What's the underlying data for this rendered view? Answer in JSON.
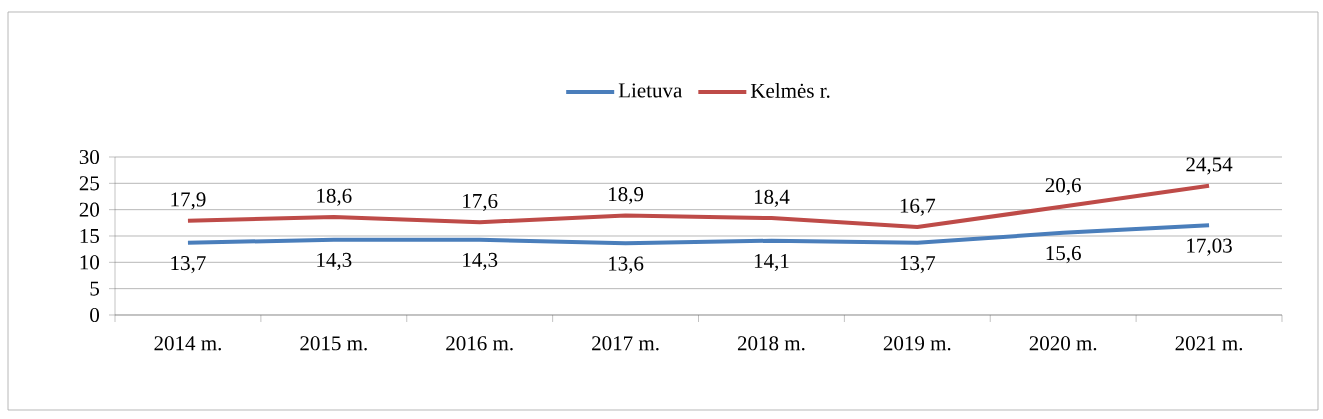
{
  "chart_data": {
    "type": "line",
    "categories": [
      "2014 m.",
      "2015 m.",
      "2016 m.",
      "2017 m.",
      "2018 m.",
      "2019 m.",
      "2020 m.",
      "2021 m."
    ],
    "series": [
      {
        "name": "Lietuva",
        "color": "#4a7ebb",
        "values": [
          13.7,
          14.3,
          14.3,
          13.6,
          14.1,
          13.7,
          15.6,
          17.03
        ],
        "value_labels": [
          "13,7",
          "14,3",
          "14,3",
          "13,6",
          "14,1",
          "13,7",
          "15,6",
          "17,03"
        ]
      },
      {
        "name": "Kelmės r.",
        "color": "#be4b48",
        "values": [
          17.9,
          18.6,
          17.6,
          18.9,
          18.4,
          16.7,
          20.6,
          24.54
        ],
        "value_labels": [
          "17,9",
          "18,6",
          "17,6",
          "18,9",
          "18,4",
          "16,7",
          "20,6",
          "24,54"
        ]
      }
    ],
    "ylim": [
      0,
      30
    ],
    "yticks": [
      0,
      5,
      10,
      15,
      20,
      25,
      30
    ],
    "grid": "y",
    "legend": "top",
    "marker": "none",
    "line_style": "solid"
  }
}
